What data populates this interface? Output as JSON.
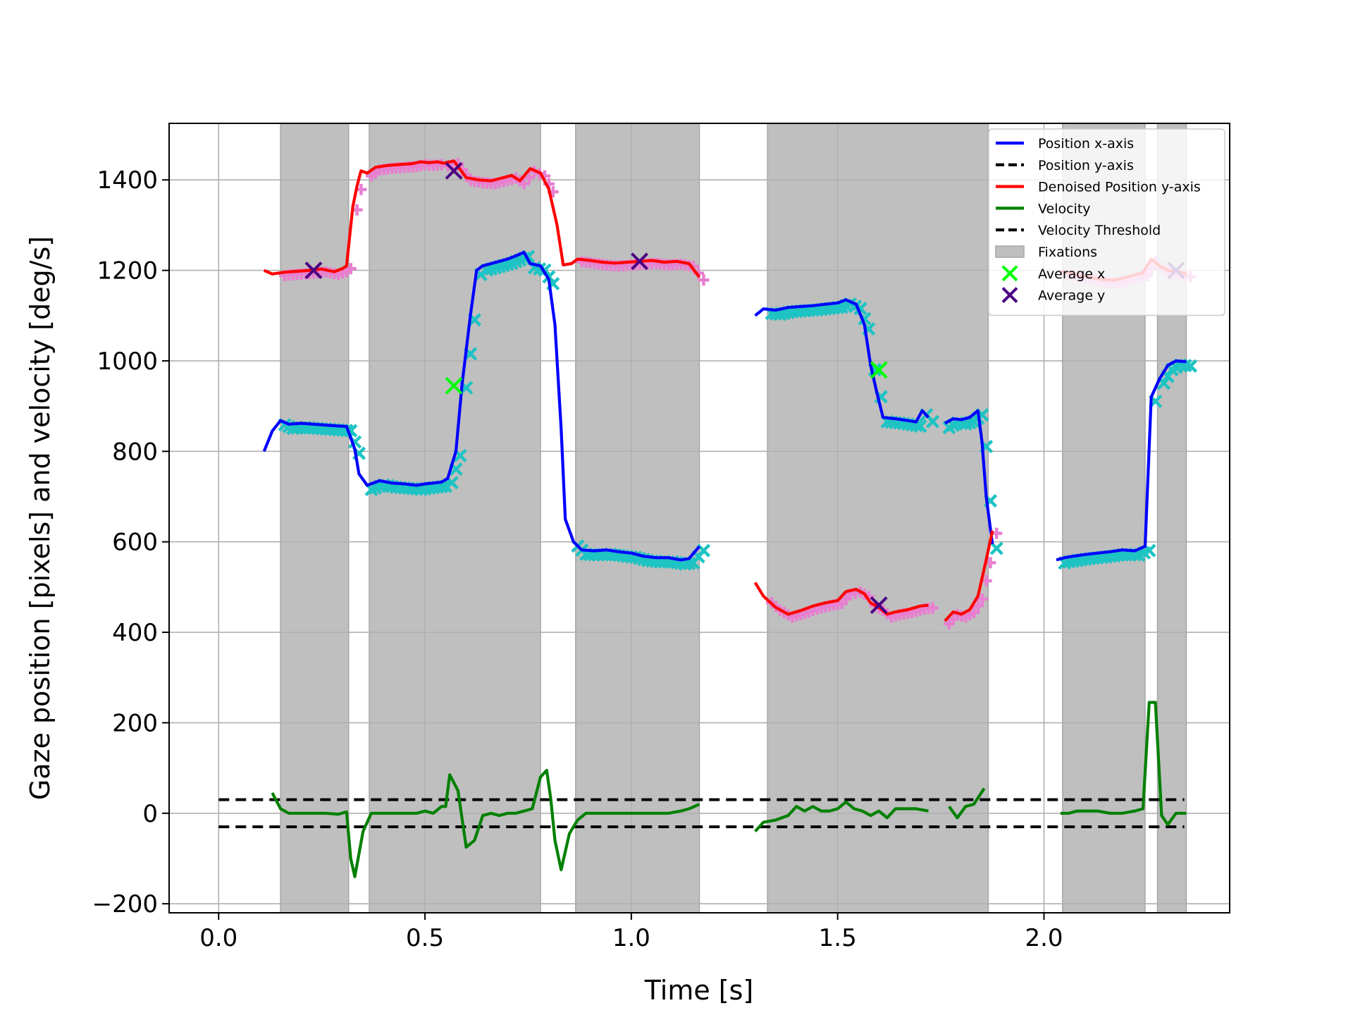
{
  "chart_data": {
    "type": "line",
    "title": "",
    "xlabel": "Time [s]",
    "ylabel": "Gaze position [pixels] and velocity [deg/s]",
    "xlim": [
      -0.12,
      2.45
    ],
    "ylim": [
      -220,
      1525
    ],
    "x_ticks": [
      0.0,
      0.5,
      1.0,
      1.5,
      2.0
    ],
    "x_tick_labels": [
      "0.0",
      "0.5",
      "1.0",
      "1.5",
      "2.0"
    ],
    "y_ticks": [
      -200,
      0,
      200,
      400,
      600,
      800,
      1000,
      1200,
      1400
    ],
    "y_tick_labels": [
      "−200",
      "0",
      "200",
      "400",
      "600",
      "800",
      "1000",
      "1200",
      "1400"
    ],
    "grid": true,
    "legend_position": "upper-right",
    "legend": [
      {
        "label": "Position x-axis",
        "kind": "line",
        "color": "#0000ff"
      },
      {
        "label": "Position y-axis",
        "kind": "dashed",
        "color": "#000000"
      },
      {
        "label": "Denoised Position y-axis",
        "kind": "line",
        "color": "#ff0000"
      },
      {
        "label": "Velocity",
        "kind": "line",
        "color": "#008000"
      },
      {
        "label": "Velocity Threshold",
        "kind": "dashed",
        "color": "#000000"
      },
      {
        "label": "Fixations",
        "kind": "patch",
        "color": "#bfbfbf"
      },
      {
        "label": "Average x",
        "kind": "xmarker",
        "color": "#00ff00"
      },
      {
        "label": "Average y",
        "kind": "xmarker",
        "color": "#4b0082"
      }
    ],
    "colors": {
      "position_x": "#0000ff",
      "denoised_y": "#ff0000",
      "velocity": "#008000",
      "threshold": "#000000",
      "fixation": "#bfbfbf",
      "avg_x": "#00ff00",
      "avg_y": "#4b0082",
      "x_samples": "#1ec3c3",
      "y_samples": "#e87fd0"
    },
    "fixations": [
      [
        0.15,
        0.315
      ],
      [
        0.365,
        0.78
      ],
      [
        0.865,
        1.165
      ],
      [
        1.33,
        1.865
      ],
      [
        2.045,
        2.245
      ],
      [
        2.275,
        2.345
      ]
    ],
    "velocity_threshold": [
      30,
      -30
    ],
    "threshold_x_range": [
      0.0,
      2.34
    ],
    "position_x": [
      [
        [
          0.11,
          800
        ],
        [
          0.13,
          845
        ],
        [
          0.15,
          868
        ],
        [
          0.17,
          860
        ],
        [
          0.2,
          862
        ],
        [
          0.23,
          860
        ],
        [
          0.26,
          858
        ],
        [
          0.29,
          856
        ],
        [
          0.31,
          855
        ],
        [
          0.33,
          805
        ],
        [
          0.34,
          750
        ],
        [
          0.36,
          725
        ],
        [
          0.39,
          735
        ],
        [
          0.42,
          730
        ],
        [
          0.45,
          728
        ],
        [
          0.48,
          725
        ],
        [
          0.5,
          728
        ],
        [
          0.52,
          730
        ],
        [
          0.54,
          732
        ],
        [
          0.555,
          740
        ],
        [
          0.575,
          800
        ],
        [
          0.59,
          950
        ],
        [
          0.61,
          1100
        ],
        [
          0.625,
          1200
        ],
        [
          0.64,
          1210
        ],
        [
          0.66,
          1215
        ],
        [
          0.68,
          1220
        ],
        [
          0.7,
          1225
        ],
        [
          0.72,
          1232
        ],
        [
          0.74,
          1240
        ],
        [
          0.755,
          1215
        ],
        [
          0.78,
          1210
        ],
        [
          0.8,
          1180
        ],
        [
          0.815,
          1080
        ],
        [
          0.83,
          850
        ],
        [
          0.84,
          650
        ],
        [
          0.86,
          600
        ],
        [
          0.88,
          582
        ],
        [
          0.91,
          580
        ],
        [
          0.94,
          582
        ],
        [
          0.97,
          578
        ],
        [
          1.0,
          575
        ],
        [
          1.03,
          568
        ],
        [
          1.06,
          565
        ],
        [
          1.09,
          565
        ],
        [
          1.12,
          560
        ],
        [
          1.14,
          563
        ],
        [
          1.165,
          590
        ]
      ],
      [
        [
          1.3,
          1100
        ],
        [
          1.32,
          1115
        ],
        [
          1.35,
          1112
        ],
        [
          1.38,
          1118
        ],
        [
          1.41,
          1120
        ],
        [
          1.44,
          1122
        ],
        [
          1.47,
          1125
        ],
        [
          1.5,
          1128
        ],
        [
          1.52,
          1135
        ],
        [
          1.545,
          1125
        ],
        [
          1.565,
          1080
        ],
        [
          1.58,
          990
        ],
        [
          1.595,
          930
        ],
        [
          1.61,
          875
        ],
        [
          1.64,
          872
        ],
        [
          1.67,
          868
        ],
        [
          1.69,
          865
        ],
        [
          1.705,
          890
        ],
        [
          1.72,
          875
        ]
      ],
      [
        [
          1.76,
          862
        ],
        [
          1.78,
          872
        ],
        [
          1.8,
          870
        ],
        [
          1.82,
          875
        ],
        [
          1.84,
          890
        ],
        [
          1.85,
          820
        ],
        [
          1.86,
          700
        ],
        [
          1.875,
          595
        ]
      ],
      [
        [
          2.03,
          560
        ],
        [
          2.05,
          565
        ],
        [
          2.07,
          568
        ],
        [
          2.1,
          572
        ],
        [
          2.13,
          575
        ],
        [
          2.16,
          578
        ],
        [
          2.19,
          582
        ],
        [
          2.22,
          580
        ],
        [
          2.245,
          590
        ],
        [
          2.26,
          920
        ],
        [
          2.28,
          960
        ],
        [
          2.3,
          990
        ],
        [
          2.32,
          1000
        ],
        [
          2.345,
          998
        ]
      ]
    ],
    "denoised_y": [
      [
        [
          0.11,
          1200
        ],
        [
          0.13,
          1192
        ],
        [
          0.16,
          1196
        ],
        [
          0.19,
          1198
        ],
        [
          0.22,
          1200
        ],
        [
          0.25,
          1203
        ],
        [
          0.28,
          1197
        ],
        [
          0.3,
          1204
        ],
        [
          0.31,
          1210
        ],
        [
          0.325,
          1340
        ],
        [
          0.335,
          1385
        ],
        [
          0.345,
          1420
        ],
        [
          0.36,
          1415
        ],
        [
          0.38,
          1428
        ],
        [
          0.41,
          1432
        ],
        [
          0.44,
          1434
        ],
        [
          0.47,
          1436
        ],
        [
          0.49,
          1440
        ],
        [
          0.51,
          1438
        ],
        [
          0.53,
          1440
        ],
        [
          0.545,
          1437
        ],
        [
          0.57,
          1442
        ],
        [
          0.6,
          1405
        ],
        [
          0.63,
          1400
        ],
        [
          0.66,
          1398
        ],
        [
          0.69,
          1405
        ],
        [
          0.71,
          1410
        ],
        [
          0.73,
          1398
        ],
        [
          0.755,
          1425
        ],
        [
          0.78,
          1415
        ],
        [
          0.8,
          1380
        ],
        [
          0.82,
          1300
        ],
        [
          0.835,
          1212
        ],
        [
          0.855,
          1215
        ],
        [
          0.87,
          1225
        ],
        [
          0.9,
          1222
        ],
        [
          0.93,
          1218
        ],
        [
          0.96,
          1216
        ],
        [
          0.99,
          1218
        ],
        [
          1.02,
          1220
        ],
        [
          1.05,
          1222
        ],
        [
          1.08,
          1218
        ],
        [
          1.11,
          1220
        ],
        [
          1.14,
          1215
        ],
        [
          1.165,
          1185
        ]
      ],
      [
        [
          1.3,
          510
        ],
        [
          1.32,
          480
        ],
        [
          1.35,
          455
        ],
        [
          1.38,
          440
        ],
        [
          1.41,
          448
        ],
        [
          1.44,
          458
        ],
        [
          1.47,
          465
        ],
        [
          1.5,
          470
        ],
        [
          1.52,
          490
        ],
        [
          1.545,
          495
        ],
        [
          1.565,
          485
        ],
        [
          1.58,
          465
        ],
        [
          1.6,
          455
        ],
        [
          1.62,
          440
        ],
        [
          1.64,
          445
        ],
        [
          1.67,
          450
        ],
        [
          1.7,
          458
        ],
        [
          1.72,
          460
        ]
      ],
      [
        [
          1.76,
          425
        ],
        [
          1.78,
          445
        ],
        [
          1.8,
          440
        ],
        [
          1.82,
          450
        ],
        [
          1.84,
          480
        ],
        [
          1.86,
          560
        ],
        [
          1.875,
          625
        ]
      ],
      [
        [
          2.04,
          1198
        ],
        [
          2.06,
          1195
        ],
        [
          2.08,
          1190
        ],
        [
          2.11,
          1185
        ],
        [
          2.14,
          1180
        ],
        [
          2.17,
          1178
        ],
        [
          2.2,
          1185
        ],
        [
          2.22,
          1190
        ],
        [
          2.24,
          1195
        ],
        [
          2.26,
          1225
        ],
        [
          2.28,
          1210
        ],
        [
          2.3,
          1200
        ],
        [
          2.32,
          1198
        ],
        [
          2.345,
          1192
        ]
      ]
    ],
    "velocity": [
      [
        [
          0.13,
          45
        ],
        [
          0.15,
          10
        ],
        [
          0.17,
          0
        ],
        [
          0.2,
          0
        ],
        [
          0.23,
          0
        ],
        [
          0.26,
          0
        ],
        [
          0.29,
          -2
        ],
        [
          0.31,
          3
        ],
        [
          0.32,
          -100
        ],
        [
          0.33,
          -140
        ],
        [
          0.35,
          -40
        ],
        [
          0.37,
          0
        ],
        [
          0.39,
          0
        ],
        [
          0.42,
          0
        ],
        [
          0.45,
          0
        ],
        [
          0.48,
          0
        ],
        [
          0.5,
          5
        ],
        [
          0.52,
          0
        ],
        [
          0.54,
          15
        ],
        [
          0.55,
          15
        ],
        [
          0.56,
          85
        ],
        [
          0.58,
          50
        ],
        [
          0.6,
          -75
        ],
        [
          0.62,
          -60
        ],
        [
          0.64,
          -5
        ],
        [
          0.66,
          0
        ],
        [
          0.68,
          -5
        ],
        [
          0.7,
          0
        ],
        [
          0.72,
          0
        ],
        [
          0.74,
          5
        ],
        [
          0.76,
          10
        ],
        [
          0.78,
          80
        ],
        [
          0.795,
          95
        ],
        [
          0.805,
          30
        ],
        [
          0.815,
          -60
        ],
        [
          0.83,
          -125
        ],
        [
          0.85,
          -45
        ],
        [
          0.87,
          -15
        ],
        [
          0.89,
          0
        ],
        [
          0.91,
          0
        ],
        [
          0.94,
          0
        ],
        [
          0.97,
          0
        ],
        [
          1.0,
          0
        ],
        [
          1.03,
          0
        ],
        [
          1.06,
          0
        ],
        [
          1.09,
          0
        ],
        [
          1.12,
          5
        ],
        [
          1.14,
          10
        ],
        [
          1.165,
          20
        ]
      ],
      [
        [
          1.3,
          -40
        ],
        [
          1.32,
          -20
        ],
        [
          1.35,
          -15
        ],
        [
          1.38,
          -5
        ],
        [
          1.4,
          15
        ],
        [
          1.42,
          5
        ],
        [
          1.44,
          15
        ],
        [
          1.46,
          5
        ],
        [
          1.48,
          5
        ],
        [
          1.5,
          10
        ],
        [
          1.52,
          25
        ],
        [
          1.54,
          10
        ],
        [
          1.56,
          5
        ],
        [
          1.58,
          -5
        ],
        [
          1.6,
          5
        ],
        [
          1.62,
          -10
        ],
        [
          1.64,
          10
        ],
        [
          1.67,
          10
        ],
        [
          1.69,
          10
        ],
        [
          1.72,
          5
        ]
      ],
      [
        [
          1.77,
          15
        ],
        [
          1.79,
          -10
        ],
        [
          1.81,
          15
        ],
        [
          1.83,
          20
        ],
        [
          1.855,
          55
        ]
      ],
      [
        [
          2.04,
          0
        ],
        [
          2.06,
          0
        ],
        [
          2.08,
          5
        ],
        [
          2.1,
          5
        ],
        [
          2.13,
          5
        ],
        [
          2.16,
          0
        ],
        [
          2.19,
          0
        ],
        [
          2.22,
          5
        ],
        [
          2.24,
          10
        ],
        [
          2.255,
          245
        ],
        [
          2.27,
          245
        ],
        [
          2.285,
          -5
        ],
        [
          2.3,
          -25
        ],
        [
          2.32,
          0
        ],
        [
          2.345,
          0
        ]
      ]
    ],
    "average_x": [
      [
        0.57,
        945
      ],
      [
        1.6,
        980
      ]
    ],
    "average_y": [
      [
        0.23,
        1200
      ],
      [
        0.57,
        1420
      ],
      [
        1.02,
        1220
      ],
      [
        1.6,
        460
      ],
      [
        2.32,
        1200
      ]
    ]
  }
}
